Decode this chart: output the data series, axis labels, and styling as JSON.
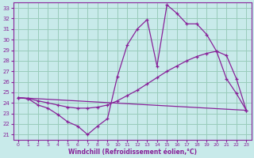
{
  "bg_color": "#c8eaea",
  "line_color": "#882299",
  "grid_color": "#99ccbb",
  "xlabel": "Windchill (Refroidissement éolien,°C)",
  "ylabel_ticks": [
    21,
    22,
    23,
    24,
    25,
    26,
    27,
    28,
    29,
    30,
    31,
    32,
    33
  ],
  "xlim": [
    -0.5,
    23.5
  ],
  "ylim": [
    20.5,
    33.5
  ],
  "xticks": [
    0,
    1,
    2,
    3,
    4,
    5,
    6,
    7,
    8,
    9,
    10,
    11,
    12,
    13,
    14,
    15,
    16,
    17,
    18,
    19,
    20,
    21,
    22,
    23
  ],
  "line_wiggly": {
    "x": [
      0,
      1,
      2,
      3,
      4,
      5,
      6,
      7,
      8,
      9,
      10,
      11,
      12,
      13,
      14,
      15,
      16,
      17,
      18,
      19,
      20,
      21,
      22,
      23
    ],
    "y": [
      24.5,
      24.4,
      23.8,
      23.5,
      22.9,
      22.2,
      21.8,
      21.0,
      21.8,
      22.5,
      26.5,
      29.5,
      31.0,
      31.9,
      27.5,
      33.3,
      32.5,
      31.5,
      31.5,
      30.5,
      28.9,
      26.3,
      24.9,
      23.3
    ]
  },
  "line_diagonal": {
    "x": [
      0,
      23
    ],
    "y": [
      24.5,
      23.3
    ]
  },
  "line_smooth": {
    "x": [
      0,
      1,
      2,
      3,
      4,
      5,
      6,
      7,
      8,
      9,
      10,
      11,
      12,
      13,
      14,
      15,
      16,
      17,
      18,
      19,
      20,
      21,
      22,
      23
    ],
    "y": [
      24.5,
      24.4,
      24.2,
      24.0,
      23.8,
      23.6,
      23.5,
      23.5,
      23.6,
      23.8,
      24.2,
      24.7,
      25.2,
      25.8,
      26.4,
      27.0,
      27.5,
      28.0,
      28.4,
      28.7,
      28.9,
      28.5,
      26.3,
      23.3
    ]
  }
}
